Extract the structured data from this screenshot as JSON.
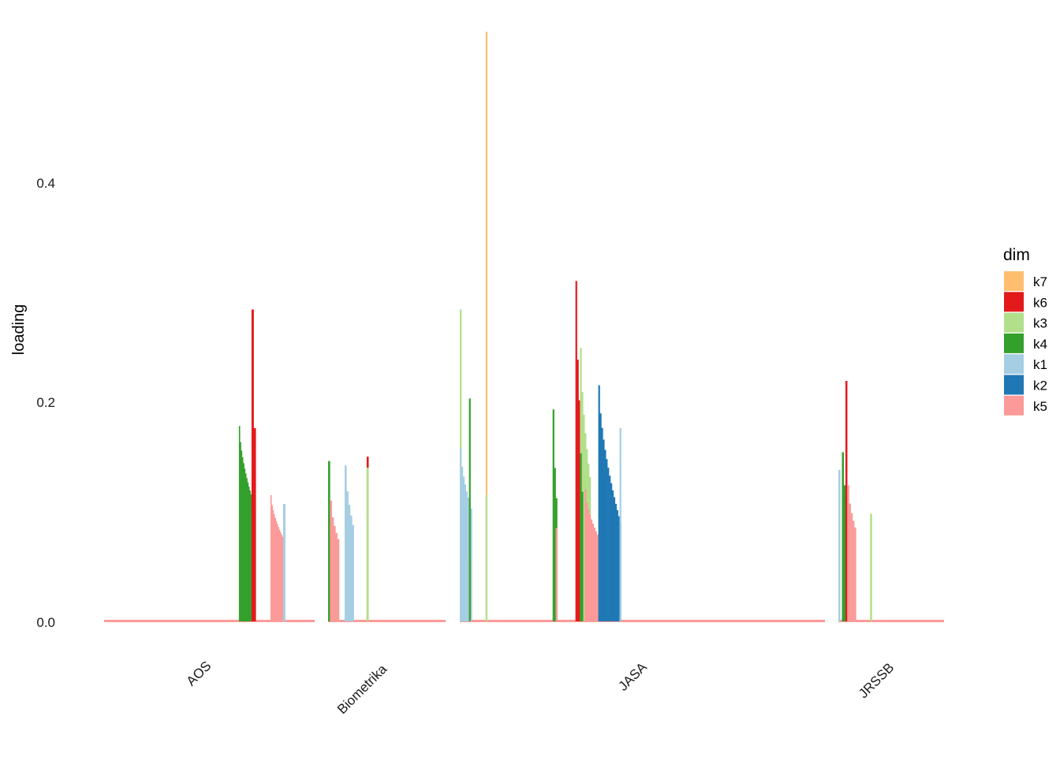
{
  "chart_data": {
    "type": "bar",
    "xlabel": "",
    "ylabel": "loading",
    "ylim": [
      0,
      0.54
    ],
    "yticks": [
      "0.0",
      "0.2",
      "0.4"
    ],
    "grid": false,
    "legend": {
      "title": "dim",
      "position": "right",
      "items": [
        {
          "name": "k7",
          "color": "#FDBF6F"
        },
        {
          "name": "k6",
          "color": "#E31A1C"
        },
        {
          "name": "k3",
          "color": "#B2DF8A"
        },
        {
          "name": "k4",
          "color": "#33A02C"
        },
        {
          "name": "k1",
          "color": "#A6CEE3"
        },
        {
          "name": "k2",
          "color": "#1F78B4"
        },
        {
          "name": "k5",
          "color": "#FB9A99"
        }
      ]
    },
    "facets": [
      {
        "label": "AOS",
        "n": 100,
        "segments": [
          {
            "dim": "k4",
            "start": 65,
            "end": 72,
            "from": 0.178,
            "to": 0.1,
            "base": 0.095
          },
          {
            "dim": "k6",
            "start": 71,
            "end": 71,
            "from": 0.284,
            "to": 0.284
          },
          {
            "dim": "k6",
            "start": 72,
            "end": 72,
            "from": 0.176,
            "to": 0.176
          },
          {
            "dim": "k5",
            "start": 80,
            "end": 85,
            "from": 0.115,
            "to": 0.075,
            "base": 0.072
          },
          {
            "dim": "k1",
            "start": 86,
            "end": 86,
            "from": 0.107,
            "to": 0.107
          }
        ]
      },
      {
        "label": "Biometrika",
        "n": 64,
        "segments": [
          {
            "dim": "k4",
            "start": 1,
            "end": 1,
            "from": 0.146,
            "to": 0.146
          },
          {
            "dim": "k5",
            "start": 2,
            "end": 6,
            "from": 0.11,
            "to": 0.07
          },
          {
            "dim": "k1",
            "start": 10,
            "end": 14,
            "from": 0.142,
            "to": 0.08
          },
          {
            "dim": "k6",
            "start": 22,
            "end": 22,
            "from": 0.15,
            "to": 0.15
          },
          {
            "dim": "k3",
            "start": 22,
            "end": 22,
            "from": 0.14,
            "to": 0.14
          }
        ]
      },
      {
        "label": "JASA",
        "n": 240,
        "segments": [
          {
            "dim": "k3",
            "start": 1,
            "end": 1,
            "from": 0.284,
            "to": 0.284
          },
          {
            "dim": "k1",
            "start": 1,
            "end": 8,
            "from": 0.158,
            "to": 0.098
          },
          {
            "dim": "k5",
            "start": 7,
            "end": 7,
            "from": 0.058,
            "to": 0.058
          },
          {
            "dim": "k4",
            "start": 7,
            "end": 7,
            "from": 0.203,
            "to": 0.203
          },
          {
            "dim": "k7",
            "start": 18,
            "end": 18,
            "from": 0.537,
            "to": 0.537
          },
          {
            "dim": "k3",
            "start": 18,
            "end": 18,
            "from": 0.115,
            "to": 0.115
          },
          {
            "dim": "k4",
            "start": 62,
            "end": 64,
            "from": 0.193,
            "to": 0.09
          },
          {
            "dim": "k5",
            "start": 64,
            "end": 64,
            "from": 0.085,
            "to": 0.085
          },
          {
            "dim": "k6",
            "start": 77,
            "end": 82,
            "from": 0.31,
            "to": 0.1
          },
          {
            "dim": "k3",
            "start": 80,
            "end": 86,
            "from": 0.249,
            "to": 0.12
          },
          {
            "dim": "k4",
            "start": 80,
            "end": 81,
            "from": 0.153,
            "to": 0.1
          },
          {
            "dim": "k5",
            "start": 83,
            "end": 95,
            "from": 0.12,
            "to": 0.065
          },
          {
            "dim": "k2",
            "start": 92,
            "end": 106,
            "from": 0.215,
            "to": 0.085
          },
          {
            "dim": "k1",
            "start": 106,
            "end": 106,
            "from": 0.176,
            "to": 0.176
          }
        ]
      },
      {
        "label": "JRSSB",
        "n": 60,
        "segments": [
          {
            "dim": "k1",
            "start": 1,
            "end": 1,
            "from": 0.138,
            "to": 0.138
          },
          {
            "dim": "k4",
            "start": 3,
            "end": 6,
            "from": 0.154,
            "to": 0.085
          },
          {
            "dim": "k6",
            "start": 5,
            "end": 5,
            "from": 0.219,
            "to": 0.219
          },
          {
            "dim": "k5",
            "start": 6,
            "end": 10,
            "from": 0.124,
            "to": 0.08
          },
          {
            "dim": "k3",
            "start": 19,
            "end": 19,
            "from": 0.098,
            "to": 0.098
          }
        ]
      }
    ]
  }
}
